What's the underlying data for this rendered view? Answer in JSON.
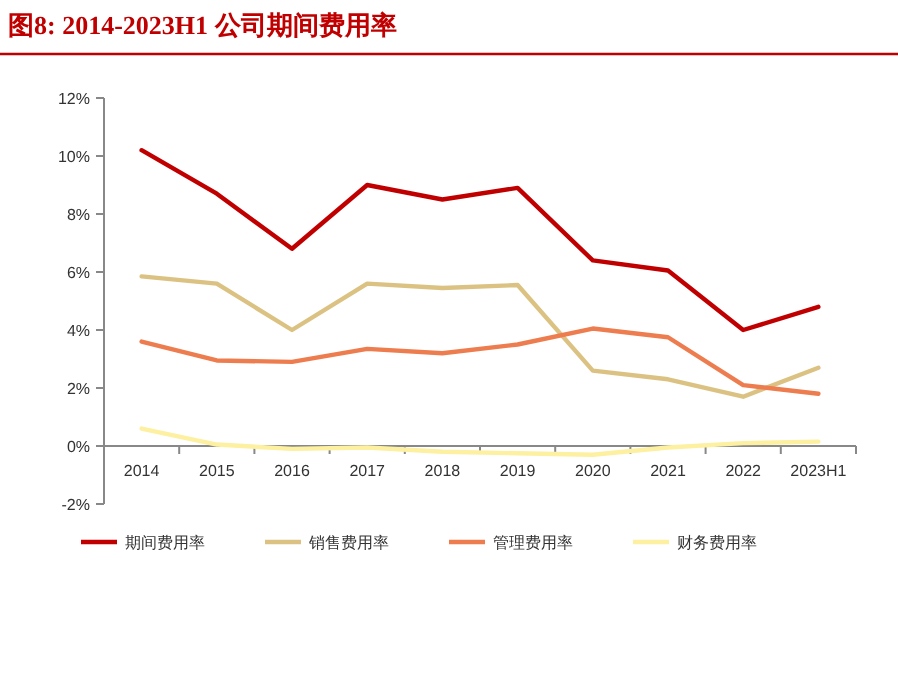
{
  "chart_data": {
    "type": "line",
    "title": "图8:   2014-2023H1 公司期间费用率",
    "categories": [
      "2014",
      "2015",
      "2016",
      "2017",
      "2018",
      "2019",
      "2020",
      "2021",
      "2022",
      "2023H1"
    ],
    "series": [
      {
        "name": "期间费用率",
        "color": "#c00000",
        "values": [
          10.2,
          8.7,
          6.8,
          9.0,
          8.5,
          8.9,
          6.4,
          6.05,
          4.0,
          4.8
        ]
      },
      {
        "name": "销售费用率",
        "color": "#dcc282",
        "values": [
          5.85,
          5.6,
          4.0,
          5.6,
          5.45,
          5.55,
          2.6,
          2.3,
          1.7,
          2.7
        ]
      },
      {
        "name": "管理费用率",
        "color": "#ed7d4e",
        "values": [
          3.6,
          2.95,
          2.9,
          3.35,
          3.2,
          3.5,
          4.05,
          3.75,
          2.1,
          1.8
        ]
      },
      {
        "name": "财务费用率",
        "color": "#fdf0a0",
        "values": [
          0.6,
          0.05,
          -0.1,
          -0.05,
          -0.2,
          -0.25,
          -0.3,
          -0.05,
          0.1,
          0.15
        ]
      }
    ],
    "ylim": [
      -2,
      12
    ],
    "yticks": [
      {
        "value": -2,
        "label": "-2%"
      },
      {
        "value": 0,
        "label": "0%"
      },
      {
        "value": 2,
        "label": "2%"
      },
      {
        "value": 4,
        "label": "4%"
      },
      {
        "value": 6,
        "label": "6%"
      },
      {
        "value": 8,
        "label": "8%"
      },
      {
        "value": 10,
        "label": "10%"
      },
      {
        "value": 12,
        "label": "12%"
      }
    ],
    "legend": "bottom",
    "marker": "none",
    "line_style": "solid",
    "grid": false
  }
}
